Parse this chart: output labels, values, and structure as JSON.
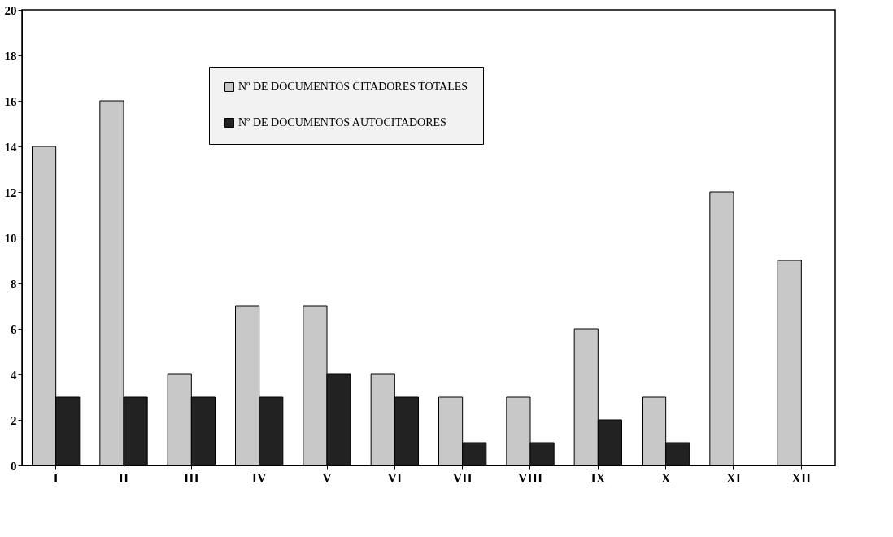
{
  "chart_data": {
    "type": "bar",
    "categories": [
      "I",
      "II",
      "III",
      "IV",
      "V",
      "VI",
      "VII",
      "VIII",
      "IX",
      "X",
      "XI",
      "XII"
    ],
    "series": [
      {
        "name": "Nº DE DOCUMENTOS CITADORES TOTALES",
        "color": "#c8c8c8",
        "values": [
          14,
          16,
          4,
          7,
          7,
          4,
          3,
          3,
          6,
          3,
          12,
          9
        ]
      },
      {
        "name": "Nº DE DOCUMENTOS AUTOCITADORES",
        "color": "#222222",
        "values": [
          3,
          3,
          3,
          3,
          4,
          3,
          1,
          1,
          2,
          1,
          0,
          0
        ]
      }
    ],
    "ylim": [
      0,
      20
    ],
    "yticks": [
      0,
      2,
      4,
      6,
      8,
      10,
      12,
      14,
      16,
      18,
      20
    ],
    "grid": false,
    "legend": "top"
  }
}
